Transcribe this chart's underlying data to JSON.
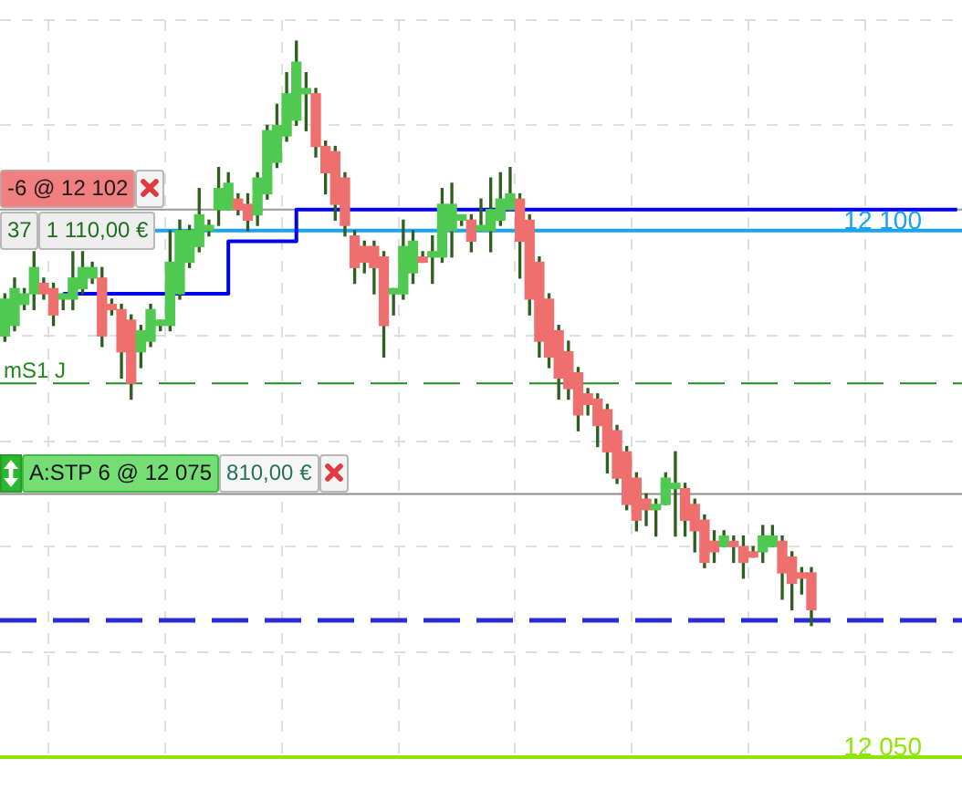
{
  "chart_data": {
    "type": "candlestick",
    "categories": [
      null,
      null,
      null,
      null,
      null,
      null,
      null,
      null,
      null,
      null,
      null,
      null,
      null,
      null,
      null,
      null,
      null,
      null,
      null,
      null,
      null,
      null,
      null,
      null,
      null,
      null,
      null,
      null,
      null,
      null,
      null,
      null,
      null,
      null,
      null,
      null,
      null,
      null,
      null,
      null,
      null,
      null,
      null,
      null,
      null,
      null,
      null,
      null,
      null,
      null,
      null,
      null,
      null,
      null,
      null,
      null,
      null,
      null,
      null,
      null,
      null,
      null,
      null,
      null,
      null,
      null,
      null,
      null,
      null,
      null,
      null,
      null,
      null,
      null,
      null,
      null,
      null,
      null,
      null,
      null,
      null,
      null,
      null,
      null,
      null,
      null,
      null,
      null,
      null,
      null,
      null,
      null,
      null,
      null,
      null,
      null,
      null,
      null,
      null
    ],
    "ohlc": [
      [
        12090,
        12094,
        12089.5,
        12093.5
      ],
      [
        12091,
        12095.5,
        12090.5,
        12094.5
      ],
      [
        12093,
        12094.5,
        12092.5,
        12094
      ],
      [
        12094,
        12098,
        12092.5,
        12096.5
      ],
      [
        12095,
        12095.5,
        12093.5,
        12094
      ],
      [
        12094.5,
        12095,
        12091,
        12092
      ],
      [
        12093.5,
        12094,
        12092.5,
        12094
      ],
      [
        12093.5,
        12098,
        12092.5,
        12095.5
      ],
      [
        12094.5,
        12098,
        12094,
        12096.5
      ],
      [
        12095.5,
        12097,
        12095,
        12096.5
      ],
      [
        12095.5,
        12096.5,
        12089,
        12090
      ],
      [
        12093,
        12093.5,
        12092,
        12092.5
      ],
      [
        12092.5,
        12093,
        12086,
        12088.5
      ],
      [
        12091.5,
        12092,
        12084,
        12085.5
      ],
      [
        12088.5,
        12091,
        12087,
        12090.5
      ],
      [
        12089.5,
        12093,
        12089,
        12092.5
      ],
      [
        12091,
        12091.5,
        12090.5,
        12091.5
      ],
      [
        12091,
        12100,
        12090.5,
        12097
      ],
      [
        12094,
        12101,
        12093.5,
        12100
      ],
      [
        12097,
        12100.5,
        12096.5,
        12100
      ],
      [
        12098.5,
        12104,
        12098,
        12101.5
      ],
      [
        12100,
        12101,
        12099.5,
        12100.5
      ],
      [
        12102,
        12106,
        12100.5,
        12104
      ],
      [
        12102,
        12105.5,
        12102,
        12104.5
      ],
      [
        12103,
        12103.5,
        12101.5,
        12102
      ],
      [
        12102.5,
        12103.5,
        12100,
        12101
      ],
      [
        12101.5,
        12105.5,
        12100.5,
        12105
      ],
      [
        12103.5,
        12110,
        12103,
        12109.5
      ],
      [
        12106.5,
        12112,
        12106,
        12110
      ],
      [
        12109,
        12115,
        12108.5,
        12113
      ],
      [
        12110.5,
        12118,
        12110,
        12116
      ],
      [
        12113,
        12115,
        12109.5,
        12113.5
      ],
      [
        12113,
        12113.5,
        12107,
        12108
      ],
      [
        12108,
        12108.5,
        12103.5,
        12105.5
      ],
      [
        12107.5,
        12108,
        12101,
        12102.5
      ],
      [
        12105,
        12105.5,
        12099.5,
        12100.5
      ],
      [
        12099.5,
        12100,
        12095,
        12096.5
      ],
      [
        12098.5,
        12099,
        12096,
        12097
      ],
      [
        12098.5,
        12099,
        12094,
        12096.5
      ],
      [
        12097.5,
        12098,
        12088,
        12091
      ],
      [
        12094,
        12094.5,
        12092,
        12094.5
      ],
      [
        12094,
        12101,
        12093.5,
        12098.5
      ],
      [
        12096,
        12100,
        12095,
        12099
      ],
      [
        12097.5,
        12098,
        12097,
        12097
      ],
      [
        12097.5,
        12099.5,
        12095,
        12098
      ],
      [
        12097.5,
        12104,
        12097,
        12102.5
      ],
      [
        12100,
        12104.5,
        12097.5,
        12102.5
      ],
      [
        12101,
        12101.5,
        12100.5,
        12101.5
      ],
      [
        12101,
        12101.5,
        12098,
        12099
      ],
      [
        12100,
        12103,
        12100,
        12100.5
      ],
      [
        12100,
        12105,
        12098,
        12102
      ],
      [
        12101,
        12105.5,
        12100.5,
        12103
      ],
      [
        12102,
        12106,
        12102,
        12103.5
      ],
      [
        12103,
        12103.5,
        12095.5,
        12099
      ],
      [
        12101,
        12101.5,
        12092,
        12093.5
      ],
      [
        12097,
        12097.5,
        12088,
        12089.5
      ],
      [
        12093.5,
        12094,
        12087,
        12088
      ],
      [
        12090.5,
        12091,
        12084,
        12086
      ],
      [
        12088.5,
        12089.5,
        12084,
        12085
      ],
      [
        12086.5,
        12087,
        12081,
        12082.5
      ],
      [
        12084.5,
        12085,
        12082.5,
        12083.5
      ],
      [
        12084,
        12084.5,
        12079.5,
        12081.5
      ],
      [
        12083,
        12083.5,
        12077,
        12079
      ],
      [
        12081,
        12081.5,
        12076,
        12076.5
      ],
      [
        12079,
        12079.5,
        12073.5,
        12074
      ],
      [
        12076.5,
        12077,
        12071.5,
        12072.5
      ],
      [
        12074.5,
        12075,
        12072,
        12073.5
      ],
      [
        12073.5,
        12074.5,
        12071,
        12074
      ],
      [
        12074,
        12077,
        12074,
        12076.5
      ],
      [
        12075.5,
        12079,
        12071,
        12076
      ],
      [
        12075.5,
        12076,
        12071,
        12072.5
      ],
      [
        12074,
        12074.5,
        12069.5,
        12071.5
      ],
      [
        12072.5,
        12073,
        12068,
        12068.5
      ],
      [
        12070.5,
        12071.5,
        12068.5,
        12069.5
      ],
      [
        12070,
        12071.5,
        12070,
        12071
      ],
      [
        12070.5,
        12071,
        12068.5,
        12070
      ],
      [
        12070,
        12071,
        12067,
        12068.5
      ],
      [
        12069.5,
        12070,
        12069,
        12069
      ],
      [
        12069.5,
        12072,
        12068.5,
        12071
      ],
      [
        12070,
        12072,
        12070,
        12071
      ],
      [
        12070.5,
        12071,
        12065,
        12067.5
      ],
      [
        12069,
        12069.5,
        12064,
        12066.5
      ],
      [
        12067.5,
        12068,
        12065.5,
        12067
      ],
      [
        12067.5,
        12068,
        12062.5,
        12064
      ],
      null,
      null,
      null,
      null,
      null,
      null,
      null,
      null,
      null,
      null,
      null,
      null,
      null,
      null,
      null
    ],
    "color": "#2d5f1e",
    "colors": [
      "#4fc94f",
      "#4fc94f",
      "#4fc94f",
      "#4fc94f",
      "#ef6f6f",
      "#ef6f6f",
      "#4fc94f",
      "#4fc94f",
      "#4fc94f",
      "#4fc94f",
      "#ef6f6f",
      "#ef6f6f",
      "#ef6f6f",
      "#ef6f6f",
      "#4fc94f",
      "#4fc94f",
      "#4fc94f",
      "#4fc94f",
      "#4fc94f",
      "#4fc94f",
      "#4fc94f",
      "#4fc94f",
      "#4fc94f",
      "#4fc94f",
      "#ef6f6f",
      "#ef6f6f",
      "#4fc94f",
      "#4fc94f",
      "#4fc94f",
      "#4fc94f",
      "#4fc94f",
      "#4fc94f",
      "#ef6f6f",
      "#ef6f6f",
      "#ef6f6f",
      "#ef6f6f",
      "#ef6f6f",
      "#ef6f6f",
      "#ef6f6f",
      "#ef6f6f",
      "#4fc94f",
      "#4fc94f",
      "#4fc94f",
      "#ef6f6f",
      "#4fc94f",
      "#4fc94f",
      "#4fc94f",
      "#4fc94f",
      "#ef6f6f",
      "#4fc94f",
      "#4fc94f",
      "#4fc94f",
      "#4fc94f",
      "#ef6f6f",
      "#ef6f6f",
      "#ef6f6f",
      "#ef6f6f",
      "#ef6f6f",
      "#ef6f6f",
      "#ef6f6f",
      "#ef6f6f",
      "#ef6f6f",
      "#ef6f6f",
      "#ef6f6f",
      "#ef6f6f",
      "#ef6f6f",
      "#ef6f6f",
      "#4fc94f",
      "#4fc94f",
      "#4fc94f",
      "#ef6f6f",
      "#ef6f6f",
      "#ef6f6f",
      "#ef6f6f",
      "#4fc94f",
      "#ef6f6f",
      "#ef6f6f",
      "#ef6f6f",
      "#4fc94f",
      "#4fc94f",
      "#ef6f6f",
      "#ef6f6f",
      "#ef6f6f",
      "#ef6f6f",
      null,
      null,
      null,
      null,
      null,
      null,
      null,
      null,
      null,
      null,
      null,
      null,
      null,
      null,
      null
    ],
    "series": [
      {
        "type": "step",
        "color": "#0000ee",
        "values": [
          null,
          null,
          null,
          null,
          null,
          null,
          12094,
          12094,
          12094,
          12094,
          12094,
          12094,
          12094,
          12094,
          12094,
          12094,
          12094,
          12094,
          12094,
          12094,
          12094,
          12094,
          12094,
          12094,
          12099,
          12099,
          12099,
          12099,
          12099,
          12099,
          12099,
          12102,
          12102,
          12102,
          12102,
          12102,
          12102,
          12102,
          12102,
          12102,
          12102,
          12102,
          12102,
          12102,
          12102,
          12102,
          12102,
          12102,
          12102,
          12102,
          12102,
          12102,
          12102,
          12102,
          12102,
          12102,
          12102,
          12102,
          12102,
          12102,
          12102,
          12102,
          12102,
          12102,
          12102,
          12102,
          12102,
          12102,
          12102,
          12102,
          12102,
          12102,
          12102,
          12102,
          12102,
          12102,
          12102,
          12102,
          12102,
          12102,
          12102,
          12102,
          12102,
          12102,
          12102,
          12102,
          12102,
          12102,
          12102,
          12102,
          12102,
          12102,
          12102,
          12102,
          12102,
          12102,
          12102,
          12102,
          12102
        ]
      }
    ],
    "ylim": [
      12050,
      12120
    ],
    "yticks": [
      {
        "value": 12050,
        "label": null
      },
      {
        "value": 12060,
        "label": null
      },
      {
        "value": 12070,
        "label": null
      },
      {
        "value": 12080,
        "label": null
      },
      {
        "value": 12090,
        "label": null
      },
      {
        "value": 12100,
        "label": null
      },
      {
        "value": 12110,
        "label": null
      },
      {
        "value": 12120,
        "label": null
      }
    ],
    "grid": true,
    "tick_labels": false,
    "ref_lines": [
      {
        "axis": "y",
        "value": 12102,
        "color": "#9a9a9a"
      },
      {
        "axis": "y",
        "value": 12100,
        "label": "12 100",
        "color": "#1aa3f0"
      },
      {
        "axis": "y",
        "value": 12085.5,
        "label": "mS1 J",
        "color": "#1e8c1e",
        "line_style": "dashed"
      },
      {
        "axis": "y",
        "value": 12075,
        "color": "#8c8c8c"
      },
      {
        "axis": "y",
        "value": 12063,
        "color": "#2a2ad8",
        "line_style": "dashed"
      },
      {
        "axis": "y",
        "value": 12050,
        "label": "12 050",
        "color": "#8ce600"
      }
    ],
    "annotations": [
      {
        "text": "-6 @ 12 102",
        "y": 12102
      },
      {
        "text": "37",
        "y": 12100
      },
      {
        "text": "1 110,00 €",
        "y": 12100
      },
      {
        "text": "A:STP 6 @ 12 075",
        "y": 12075
      },
      {
        "text": "810,00 €",
        "y": 12075
      }
    ]
  }
}
